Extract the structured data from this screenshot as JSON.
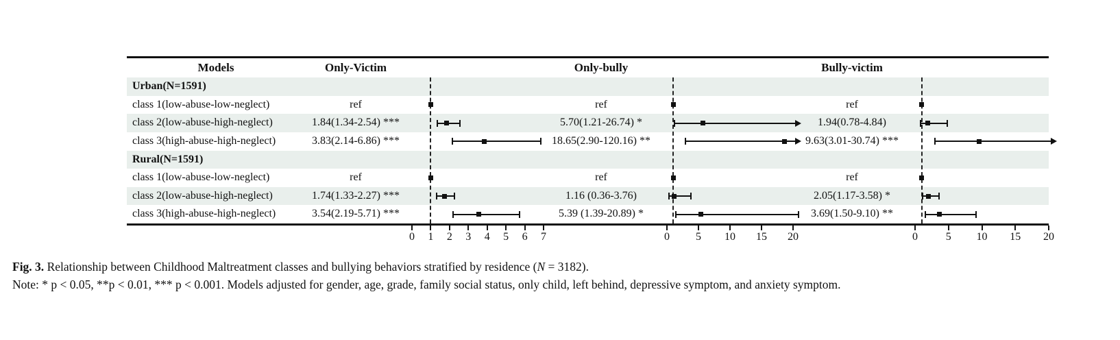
{
  "figure": {
    "caption_prefix": "Fig. 3.",
    "caption_body_1": " Relationship between Childhood Maltreatment classes and bullying behaviors stratified by residence (",
    "caption_n": "N",
    "caption_body_2": " = 3182).",
    "note": "Note: * p < 0.05, **p < 0.01, *** p < 0.001. Models adjusted for gender, age, grade, family social status, only child, left behind, depressive symptom, and anxiety symptom."
  },
  "chart_data": {
    "type": "forest",
    "columns": [
      "Models",
      "Only-Victim",
      "Only-bully",
      "Bully-victim"
    ],
    "legend": "odds ratio (95% CI) per outcome, reference line at 1",
    "colors": {
      "stripe": "#e9efec",
      "line": "#111111"
    },
    "panels": [
      {
        "id": "ov",
        "title": "Only-Victim",
        "xlim": [
          0,
          7
        ],
        "ticks": [
          0,
          1,
          2,
          3,
          4,
          5,
          6,
          7
        ],
        "refline": 1
      },
      {
        "id": "ob",
        "title": "Only-bully",
        "xlim": [
          0,
          20
        ],
        "ticks": [
          0,
          5,
          10,
          15,
          20
        ],
        "refline": 1
      },
      {
        "id": "bv",
        "title": "Bully-victim",
        "xlim": [
          0,
          20
        ],
        "ticks": [
          0,
          5,
          10,
          15,
          20
        ],
        "refline": 1
      }
    ],
    "rows": [
      {
        "label": "Urban(N=1591)",
        "type": "group"
      },
      {
        "label": "class 1(low-abuse-low-neglect)",
        "type": "data",
        "ov": {
          "text": "ref",
          "ref": true
        },
        "ob": {
          "text": "ref",
          "ref": true
        },
        "bv": {
          "text": "ref",
          "ref": true
        }
      },
      {
        "label": "class 2(low-abuse-high-neglect)",
        "type": "data",
        "ov": {
          "text": "1.84(1.34-2.54) ***",
          "est": 1.84,
          "lo": 1.34,
          "hi": 2.54
        },
        "ob": {
          "text": "5.70(1.21-26.74) *",
          "est": 5.7,
          "lo": 1.21,
          "hi": 26.74,
          "clip": true
        },
        "bv": {
          "text": "1.94(0.78-4.84)",
          "est": 1.94,
          "lo": 0.78,
          "hi": 4.84
        }
      },
      {
        "label": "class 3(high-abuse-high-neglect)",
        "type": "data",
        "ov": {
          "text": "3.83(2.14-6.86) ***",
          "est": 3.83,
          "lo": 2.14,
          "hi": 6.86
        },
        "ob": {
          "text": "18.65(2.90-120.16) **",
          "est": 18.65,
          "lo": 2.9,
          "hi": 120.16,
          "clip": true
        },
        "bv": {
          "text": "9.63(3.01-30.74) ***",
          "est": 9.63,
          "lo": 3.01,
          "hi": 30.74,
          "clip": true
        }
      },
      {
        "label": "Rural(N=1591)",
        "type": "group"
      },
      {
        "label": "class 1(low-abuse-low-neglect)",
        "type": "data",
        "ov": {
          "text": "ref",
          "ref": true
        },
        "ob": {
          "text": "ref",
          "ref": true
        },
        "bv": {
          "text": "ref",
          "ref": true
        }
      },
      {
        "label": "class 2(low-abuse-high-neglect)",
        "type": "data",
        "ov": {
          "text": "1.74(1.33-2.27) ***",
          "est": 1.74,
          "lo": 1.33,
          "hi": 2.27
        },
        "ob": {
          "text": "1.16 (0.36-3.76)",
          "est": 1.16,
          "lo": 0.36,
          "hi": 3.76
        },
        "bv": {
          "text": "2.05(1.17-3.58) *",
          "est": 2.05,
          "lo": 1.17,
          "hi": 3.58
        }
      },
      {
        "label": "class 3(high-abuse-high-neglect)",
        "type": "data",
        "ov": {
          "text": "3.54(2.19-5.71) ***",
          "est": 3.54,
          "lo": 2.19,
          "hi": 5.71
        },
        "ob": {
          "text": "5.39 (1.39-20.89) *",
          "est": 5.39,
          "lo": 1.39,
          "hi": 20.89
        },
        "bv": {
          "text": "3.69(1.50-9.10) **",
          "est": 3.69,
          "lo": 1.5,
          "hi": 9.1
        }
      }
    ]
  }
}
